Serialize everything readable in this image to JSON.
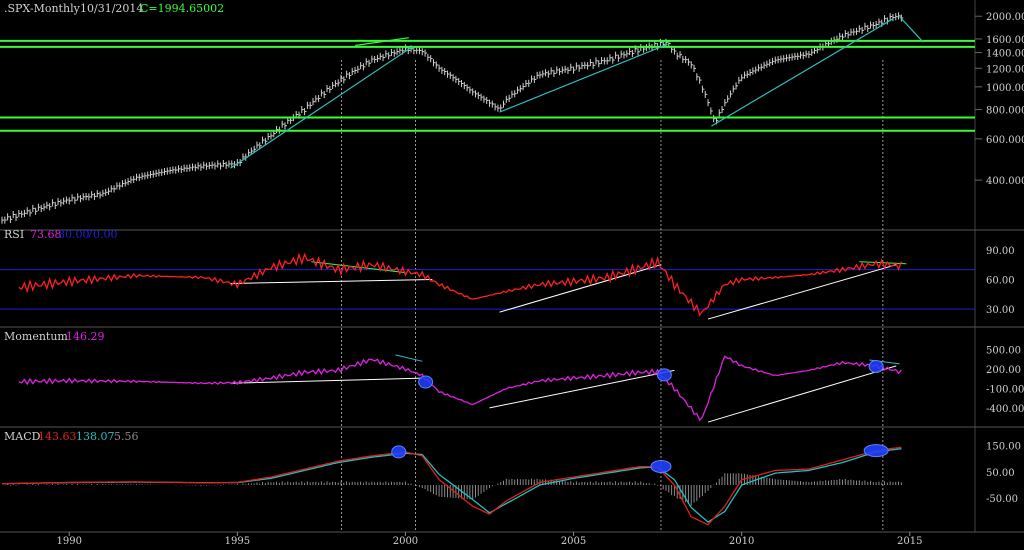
{
  "header": {
    "symbol": ".SPX-Monthly",
    "date": "10/31/2014",
    "close": "C=1994.65002"
  },
  "colors": {
    "background": "#000000",
    "price_bars": "#cfcfcf",
    "support_lines": "#33ff33",
    "trendline": "#2fbfbf",
    "white_trendline": "#ffffff",
    "rsi_line": "#ff2020",
    "rsi_bands": "#2020d0",
    "momentum_line": "#e020e0",
    "macd_line": "#e02020",
    "signal_line": "#20c0c0",
    "histogram": "#8a8a8a",
    "marker_circle": "#2040ff",
    "panel_divider": "#555555"
  },
  "chart_data": [
    {
      "type": "line",
      "panel": "price",
      "title": ".SPX-Monthly",
      "series": [
        {
          "x": [
            "1988",
            "1989",
            "1990",
            "1991",
            "1992",
            "1993",
            "1994",
            "1995",
            "1996",
            "1997",
            "1998",
            "1999",
            "2000",
            "2000.5",
            "2001",
            "2002",
            "2002.8",
            "2003",
            "2004",
            "2005",
            "2006",
            "2007",
            "2007.8",
            "2008",
            "2008.5",
            "2009.2",
            "2010",
            "2011",
            "2012",
            "2013",
            "2014",
            "2014.5",
            "2014.8"
          ],
          "values": [
            270,
            300,
            330,
            350,
            410,
            440,
            460,
            470,
            620,
            800,
            1050,
            1300,
            1450,
            1420,
            1200,
            950,
            800,
            880,
            1130,
            1200,
            1300,
            1450,
            1550,
            1400,
            1250,
            700,
            1100,
            1300,
            1380,
            1650,
            1850,
            1990,
            1995
          ]
        }
      ],
      "horizontal_levels": [
        1570,
        1480,
        740,
        650
      ],
      "y_ticks": [
        "2000.000",
        "1600.000",
        "1400.000",
        "1200.000",
        "1000.000",
        "800.000",
        "600.000",
        "400.000"
      ],
      "ylim": [
        250,
        2300
      ],
      "scale": "log",
      "grid": true
    },
    {
      "type": "line",
      "panel": "rsi",
      "title": "RSI",
      "labels": [
        "73.68",
        "30.00",
        "70.00"
      ],
      "series": [
        {
          "x": [
            1988,
            1990,
            1992,
            1994,
            1995,
            1996,
            1997,
            1998,
            1999,
            2000,
            2000.5,
            2001,
            2002,
            2003,
            2004,
            2005,
            2006,
            2007,
            2007.5,
            2008,
            2008.8,
            2009.5,
            2010,
            2011,
            2012,
            2013,
            2014,
            2014.8
          ],
          "values": [
            50,
            58,
            64,
            62,
            55,
            72,
            82,
            70,
            75,
            68,
            65,
            55,
            40,
            48,
            55,
            58,
            62,
            72,
            78,
            55,
            25,
            55,
            60,
            62,
            65,
            70,
            76,
            73.68
          ]
        },
        {
          "x": [
            1988,
            2014.8
          ],
          "values": [
            30,
            30
          ]
        },
        {
          "x": [
            1988,
            2014.8
          ],
          "values": [
            70,
            70
          ]
        }
      ],
      "y_ticks": [
        "90.00",
        "60.00",
        "30.00"
      ],
      "ylim": [
        15,
        100
      ]
    },
    {
      "type": "line",
      "panel": "momentum",
      "title": "Momentum",
      "labels": [
        "146.29"
      ],
      "series": [
        {
          "x": [
            1988,
            1990,
            1992,
            1994,
            1995,
            1996,
            1997,
            1998,
            1999,
            2000,
            2000.5,
            2001,
            2002,
            2003,
            2004,
            2005,
            2006,
            2007,
            2007.5,
            2008,
            2008.8,
            2009.5,
            2010,
            2011,
            2012,
            2013,
            2014,
            2014.8
          ],
          "values": [
            0,
            20,
            10,
            -20,
            -10,
            60,
            150,
            180,
            350,
            200,
            100,
            -150,
            -350,
            -100,
            20,
            60,
            100,
            150,
            160,
            -100,
            -600,
            400,
            250,
            100,
            180,
            300,
            250,
            146.29
          ]
        }
      ],
      "y_ticks": [
        "500.00",
        "200.00",
        "-100.00",
        "-400.00"
      ],
      "ylim": [
        -650,
        650
      ]
    },
    {
      "type": "line",
      "panel": "macd",
      "title": "MACD",
      "labels": [
        "143.63",
        "138.07",
        "5.56"
      ],
      "series": [
        {
          "x": [
            1988,
            1990,
            1992,
            1994,
            1995,
            1996,
            1997,
            1998,
            1999,
            2000,
            2000.5,
            2001,
            2002,
            2002.5,
            2003,
            2004,
            2005,
            2006,
            2007,
            2007.5,
            2008,
            2008.5,
            2009,
            2009.5,
            2010,
            2011,
            2012,
            2013,
            2014,
            2014.8
          ],
          "values": [
            5,
            10,
            12,
            8,
            10,
            30,
            60,
            90,
            110,
            125,
            110,
            20,
            -80,
            -110,
            -60,
            10,
            30,
            50,
            70,
            68,
            0,
            -120,
            -150,
            -80,
            20,
            55,
            60,
            95,
            130,
            143.63
          ]
        },
        {
          "x": [
            1988,
            1990,
            1992,
            1994,
            1995,
            1996,
            1997,
            1998,
            1999,
            2000,
            2000.5,
            2001,
            2002,
            2002.5,
            2003,
            2004,
            2005,
            2006,
            2007,
            2007.5,
            2008,
            2008.5,
            2009,
            2009.5,
            2010,
            2011,
            2012,
            2013,
            2014,
            2014.8
          ],
          "values": [
            5,
            9,
            11,
            9,
            9,
            25,
            55,
            85,
            105,
            120,
            115,
            40,
            -55,
            -105,
            -70,
            0,
            25,
            45,
            65,
            68,
            20,
            -85,
            -140,
            -100,
            0,
            45,
            55,
            85,
            125,
            138.07
          ]
        }
      ],
      "y_ticks": [
        "150.00",
        "50.00",
        "-50.00"
      ],
      "ylim": [
        -170,
        170
      ]
    }
  ],
  "x_axis": {
    "labels": [
      "1990",
      "1995",
      "2000",
      "2005",
      "2010",
      "2015"
    ],
    "range": [
      1988,
      2017
    ]
  }
}
